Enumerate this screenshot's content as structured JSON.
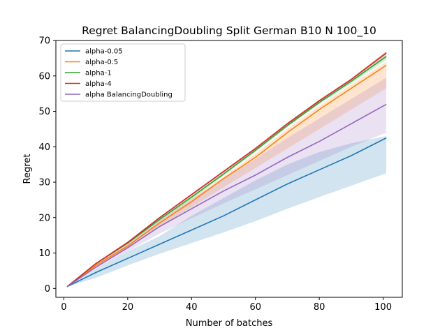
{
  "chart_data": {
    "type": "line",
    "title": "Regret BalancingDoubling Split German B10 N 100_10",
    "xlabel": "Number of batches",
    "ylabel": "Regret",
    "xlim": [
      -2.5,
      106
    ],
    "ylim": [
      -2.5,
      70
    ],
    "x_ticks": [
      0,
      20,
      40,
      60,
      80,
      100
    ],
    "y_ticks": [
      0,
      10,
      20,
      30,
      40,
      50,
      60,
      70
    ],
    "legend_position": "top-left",
    "grid": false,
    "series": [
      {
        "name": "alpha-0.05",
        "color": "#1f77b4",
        "x": [
          1,
          10,
          20,
          30,
          40,
          50,
          60,
          70,
          80,
          90,
          101
        ],
        "y": [
          0.5,
          4.5,
          8.5,
          12.5,
          16.5,
          20.5,
          25.0,
          29.5,
          33.5,
          37.5,
          42.5
        ],
        "band_low": [
          0.5,
          3.0,
          6.5,
          9.8,
          12.8,
          15.8,
          19.0,
          22.5,
          25.8,
          29.0,
          32.5
        ],
        "band_high": [
          0.5,
          5.5,
          10.5,
          14.8,
          20.5,
          25.5,
          30.5,
          35.0,
          38.5,
          41.0,
          43.0
        ]
      },
      {
        "name": "alpha-0.5",
        "color": "#ff7f0e",
        "x": [
          1,
          10,
          20,
          30,
          40,
          50,
          60,
          70,
          80,
          90,
          101
        ],
        "y": [
          0.5,
          6.5,
          12.0,
          18.5,
          24.5,
          31.0,
          37.0,
          44.0,
          50.5,
          56.5,
          63.0
        ],
        "band_low": [
          0.5,
          6.2,
          11.5,
          17.5,
          23.0,
          28.5,
          34.0,
          39.5,
          45.0,
          50.5,
          56.5
        ],
        "band_high": [
          0.5,
          6.8,
          12.5,
          19.0,
          25.5,
          31.5,
          38.0,
          45.0,
          51.5,
          57.5,
          64.0
        ]
      },
      {
        "name": "alpha-1",
        "color": "#2ca02c",
        "x": [
          1,
          10,
          20,
          30,
          40,
          50,
          60,
          70,
          80,
          90,
          101
        ],
        "y": [
          0.5,
          7.0,
          12.8,
          19.5,
          25.8,
          32.3,
          39.0,
          46.0,
          52.5,
          58.5,
          65.5
        ],
        "band_low": [
          0.5,
          6.8,
          12.5,
          19.0,
          25.3,
          31.8,
          38.5,
          45.5,
          52.0,
          57.8,
          64.5
        ],
        "band_high": [
          0.5,
          7.2,
          13.0,
          20.0,
          26.3,
          32.8,
          39.5,
          46.5,
          53.0,
          59.0,
          66.5
        ]
      },
      {
        "name": "alpha-4",
        "color": "#d62728",
        "x": [
          1,
          10,
          20,
          30,
          40,
          50,
          60,
          70,
          80,
          90,
          101
        ],
        "y": [
          0.5,
          7.0,
          13.0,
          20.0,
          26.5,
          33.0,
          39.5,
          46.5,
          53.0,
          59.0,
          66.5
        ],
        "band_low": [
          0.5,
          6.9,
          12.8,
          19.8,
          26.2,
          32.7,
          39.2,
          46.2,
          52.7,
          58.7,
          66.0
        ],
        "band_high": [
          0.5,
          7.1,
          13.2,
          20.2,
          26.8,
          33.3,
          39.8,
          46.8,
          53.3,
          59.3,
          67.0
        ]
      },
      {
        "name": "alpha BalancingDoubling",
        "color": "#9467bd",
        "x": [
          1,
          10,
          20,
          30,
          40,
          50,
          60,
          70,
          80,
          90,
          101
        ],
        "y": [
          0.5,
          6.0,
          11.5,
          17.5,
          22.5,
          27.5,
          32.0,
          37.0,
          41.5,
          46.5,
          52.0
        ],
        "band_low": [
          0.5,
          5.5,
          10.5,
          15.5,
          19.8,
          24.0,
          28.0,
          32.0,
          36.0,
          40.0,
          44.0
        ],
        "band_high": [
          0.5,
          6.8,
          12.5,
          19.2,
          25.2,
          31.0,
          36.5,
          42.5,
          48.0,
          53.5,
          59.5
        ]
      }
    ]
  }
}
